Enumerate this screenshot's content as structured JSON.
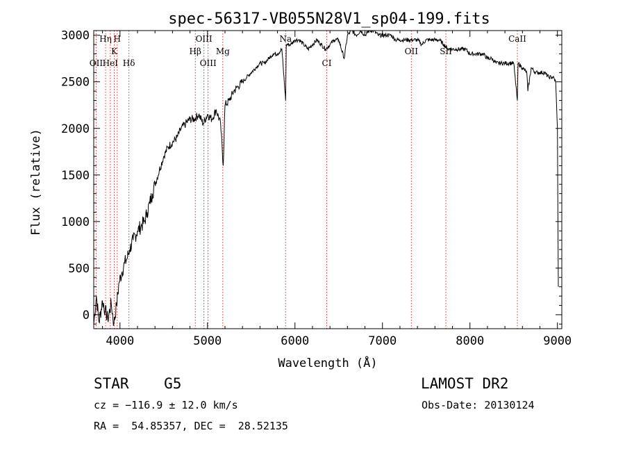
{
  "chart_data": {
    "type": "line",
    "title": "spec-56317-VB055N28V1_sp04-199.fits",
    "xlabel": "Wavelength (Å)",
    "ylabel": "Flux (relative)",
    "xlim": [
      3700,
      9050
    ],
    "ylim": [
      -150,
      3050
    ],
    "x_ticks": [
      4000,
      5000,
      6000,
      7000,
      8000,
      9000
    ],
    "y_ticks": [
      0,
      500,
      1000,
      1500,
      2000,
      2500,
      3000
    ],
    "grid": false,
    "series": [
      {
        "x": [
          3700,
          3730,
          3760,
          3800,
          3830,
          3860,
          3900,
          3930,
          3960,
          3990,
          4020,
          4050,
          4080,
          4110,
          4150,
          4200,
          4240,
          4280,
          4310,
          4340,
          4370,
          4400,
          4450,
          4500,
          4550,
          4600,
          4650,
          4700,
          4750,
          4800,
          4850,
          4900,
          4950,
          5000,
          5050,
          5100,
          5150,
          5180,
          5200,
          5250,
          5300,
          5350,
          5400,
          5450,
          5500,
          5550,
          5600,
          5650,
          5700,
          5750,
          5800,
          5850,
          5893,
          5900,
          5950,
          6000,
          6050,
          6100,
          6150,
          6200,
          6250,
          6300,
          6350,
          6400,
          6450,
          6500,
          6563,
          6600,
          6650,
          6700,
          6750,
          6800,
          6850,
          6900,
          6950,
          7000,
          7050,
          7100,
          7150,
          7200,
          7250,
          7300,
          7350,
          7400,
          7450,
          7500,
          7550,
          7600,
          7650,
          7700,
          7750,
          7800,
          7850,
          7900,
          7950,
          8000,
          8050,
          8100,
          8150,
          8200,
          8250,
          8300,
          8350,
          8400,
          8450,
          8500,
          8542,
          8550,
          8600,
          8650,
          8662,
          8700,
          8750,
          8800,
          8850,
          8900,
          8950,
          8980,
          9000,
          9010
        ],
        "y": [
          -100,
          200,
          -80,
          150,
          50,
          -50,
          120,
          -100,
          100,
          350,
          450,
          550,
          600,
          700,
          800,
          900,
          950,
          1000,
          1100,
          1200,
          1300,
          1400,
          1550,
          1700,
          1800,
          1850,
          1900,
          2000,
          2050,
          2100,
          2100,
          2150,
          2050,
          2150,
          2100,
          2200,
          2050,
          1600,
          2250,
          2300,
          2400,
          2450,
          2500,
          2550,
          2600,
          2650,
          2700,
          2700,
          2750,
          2800,
          2800,
          2850,
          2300,
          2900,
          2900,
          2950,
          2950,
          2900,
          2850,
          2900,
          2950,
          2900,
          2850,
          2900,
          2950,
          2950,
          2750,
          3000,
          3050,
          3000,
          3050,
          3000,
          3050,
          3050,
          3000,
          3000,
          3000,
          3000,
          2950,
          2950,
          2950,
          2950,
          2950,
          2950,
          2900,
          2950,
          2950,
          2950,
          2950,
          2900,
          2850,
          2850,
          2850,
          2850,
          2850,
          2800,
          2800,
          2800,
          2800,
          2750,
          2750,
          2700,
          2700,
          2700,
          2700,
          2700,
          2300,
          2700,
          2650,
          2600,
          2400,
          2650,
          2600,
          2600,
          2600,
          2550,
          2550,
          2500,
          2000,
          300
        ]
      }
    ],
    "spectral_lines": [
      {
        "label": "OII",
        "wavelength": 3727,
        "row": 3
      },
      {
        "label": "Hη",
        "wavelength": 3835,
        "row": 1
      },
      {
        "label": "HeI",
        "wavelength": 3889,
        "row": 3
      },
      {
        "label": "K",
        "wavelength": 3934,
        "row": 2
      },
      {
        "label": "H",
        "wavelength": 3968,
        "row": 1
      },
      {
        "label": "Hδ",
        "wavelength": 4102,
        "row": 3
      },
      {
        "label": "Hβ",
        "wavelength": 4861,
        "row": 2
      },
      {
        "label": "OIII",
        "wavelength": 4959,
        "row": 1
      },
      {
        "label": "OIII",
        "wavelength": 5007,
        "row": 3
      },
      {
        "label": "Mg",
        "wavelength": 5175,
        "row": 2
      },
      {
        "label": "Na",
        "wavelength": 5893,
        "row": 1
      },
      {
        "label": "CI",
        "wavelength": 6363,
        "row": 3
      },
      {
        "label": "OII",
        "wavelength": 7330,
        "row": 2
      },
      {
        "label": "SII",
        "wavelength": 7725,
        "row": 2
      },
      {
        "label": "CaII",
        "wavelength": 8542,
        "row": 1
      }
    ]
  },
  "info": {
    "object_type": "STAR",
    "subclass": "G5",
    "survey": "LAMOST DR2",
    "redshift_label": "cz = ",
    "redshift_value": "−116.9 ± 12.0 km/s",
    "obs_date_label": "Obs-Date: ",
    "obs_date_value": "20130124",
    "coord_ra_label": "RA = ",
    "coord_ra_value": "54.85357",
    "coord_dec_label": "DEC = ",
    "coord_dec_value": "28.52135"
  }
}
